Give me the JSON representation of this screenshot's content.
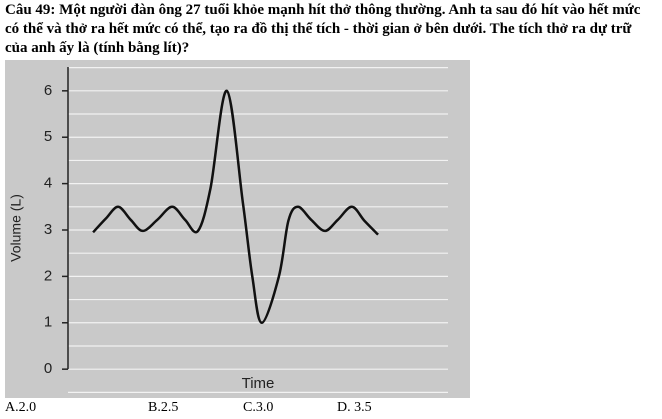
{
  "question": "Câu 49: Một người đàn ông 27 tuổi khỏe mạnh hít thở thông thường. Anh ta sau đó hít vào hết mức có thể và thở ra hết mức có thể, tạo ra đồ thị thể tích - thời gian ở bên dưới. The tích thở ra dự trữ của anh ấy là (tính bằng lít)?",
  "chart_data": {
    "type": "line",
    "ylabel": "Volume (L)",
    "xlabel": "Time",
    "x": [
      0.66,
      1.0,
      1.32,
      1.65,
      1.97,
      2.35,
      2.74,
      3.08,
      3.42,
      3.75,
      4.18,
      4.6,
      4.85,
      5.1,
      5.55,
      5.8,
      6.05,
      6.4,
      6.76,
      7.1,
      7.47,
      7.8,
      8.16
    ],
    "values": [
      2.95,
      3.25,
      3.5,
      3.22,
      2.98,
      3.22,
      3.5,
      3.22,
      2.98,
      3.9,
      6.0,
      3.6,
      2.0,
      1.0,
      2.0,
      3.2,
      3.5,
      3.22,
      2.98,
      3.22,
      3.5,
      3.2,
      2.9
    ],
    "color": "#111111",
    "xlim": [
      0,
      10
    ],
    "ylim": [
      -0.6,
      6.6
    ],
    "yticks": [
      0,
      1,
      2,
      3,
      4,
      5,
      6
    ],
    "ygrid": [
      -0.5,
      0,
      0.5,
      1,
      1.5,
      2,
      2.5,
      3,
      3.5,
      4,
      4.5,
      5,
      5.5,
      6,
      6.5
    ],
    "grid": true
  },
  "options": [
    "A.2.0",
    "B.2.5",
    "C.3.0",
    "D. 3.5"
  ]
}
